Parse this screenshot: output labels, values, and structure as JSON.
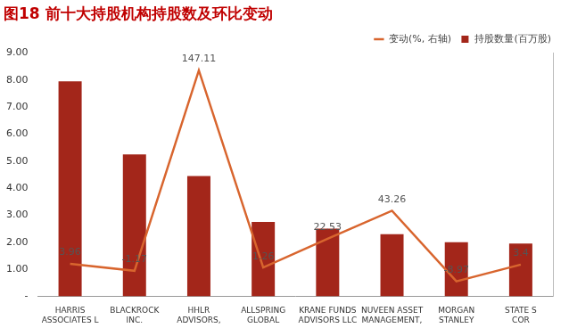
{
  "chart_data": {
    "type": "bar",
    "title": "图18 前十大持股机构持股数及环比变动",
    "categories": [
      "HARRIS\nASSOCIATES L",
      "BLACKROCK\nINC.",
      "HHLR\nADVISORS,",
      "ALLSPRING\nGLOBAL",
      "KRANE FUNDS\nADVISORS LLC",
      "NUVEEN ASSET\nMANAGEMENT,",
      "MORGAN\nSTANLEY",
      "STATE S\nCOR"
    ],
    "series": [
      {
        "name": "持股数量(百万股)",
        "type": "bar",
        "color": "#a3261a",
        "values": [
          7.95,
          5.25,
          4.45,
          2.75,
          2.5,
          2.3,
          2.0,
          1.95
        ]
      },
      {
        "name": "变动(%, 右轴)",
        "type": "line",
        "color": "#d8652e",
        "axis": "y2",
        "data_labels": true,
        "values": [
          3.96,
          -1.17,
          147.11,
          1.26,
          22.53,
          43.26,
          -8.97,
          3.4
        ]
      }
    ],
    "ylim": [
      0,
      9
    ],
    "yticks": [
      {
        "value": 0,
        "label": "-"
      },
      {
        "value": 1,
        "label": "1.00"
      },
      {
        "value": 2,
        "label": "2.00"
      },
      {
        "value": 3,
        "label": "3.00"
      },
      {
        "value": 4,
        "label": "4.00"
      },
      {
        "value": 5,
        "label": "5.00"
      },
      {
        "value": 6,
        "label": "6.00"
      },
      {
        "value": 7,
        "label": "7.00"
      },
      {
        "value": 8,
        "label": "8.00"
      },
      {
        "value": 9,
        "label": "9.00"
      }
    ],
    "y2lim": [
      -20,
      160
    ],
    "grid": false,
    "legend": "top-right"
  }
}
